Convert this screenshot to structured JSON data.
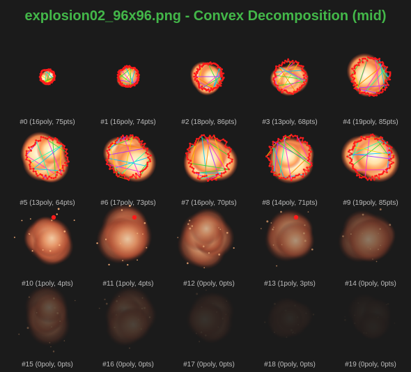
{
  "title": "explosion02_96x96.png - Convex Decomposition (mid)",
  "frames": [
    {
      "label": "#0 (16poly, 75pts)",
      "poly": 16,
      "pts": 75
    },
    {
      "label": "#1 (16poly, 74pts)",
      "poly": 16,
      "pts": 74
    },
    {
      "label": "#2 (18poly, 86pts)",
      "poly": 18,
      "pts": 86
    },
    {
      "label": "#3 (13poly, 68pts)",
      "poly": 13,
      "pts": 68
    },
    {
      "label": "#4 (19poly, 85pts)",
      "poly": 19,
      "pts": 85
    },
    {
      "label": "#5 (13poly, 64pts)",
      "poly": 13,
      "pts": 64
    },
    {
      "label": "#6 (17poly, 73pts)",
      "poly": 17,
      "pts": 73
    },
    {
      "label": "#7 (16poly, 70pts)",
      "poly": 16,
      "pts": 70
    },
    {
      "label": "#8 (14poly, 71pts)",
      "poly": 14,
      "pts": 71
    },
    {
      "label": "#9 (19poly, 85pts)",
      "poly": 19,
      "pts": 85
    },
    {
      "label": "#10 (1poly, 4pts)",
      "poly": 1,
      "pts": 4
    },
    {
      "label": "#11 (1poly, 4pts)",
      "poly": 1,
      "pts": 4
    },
    {
      "label": "#12 (0poly, 0pts)",
      "poly": 0,
      "pts": 0
    },
    {
      "label": "#13 (1poly, 3pts)",
      "poly": 1,
      "pts": 3
    },
    {
      "label": "#14 (0poly, 0pts)",
      "poly": 0,
      "pts": 0
    },
    {
      "label": "#15 (0poly, 0pts)",
      "poly": 0,
      "pts": 0
    },
    {
      "label": "#16 (0poly, 0pts)",
      "poly": 0,
      "pts": 0
    },
    {
      "label": "#17 (0poly, 0pts)",
      "poly": 0,
      "pts": 0
    },
    {
      "label": "#18 (0poly, 0pts)",
      "poly": 0,
      "pts": 0
    },
    {
      "label": "#19 (0poly, 0pts)",
      "poly": 0,
      "pts": 0
    }
  ],
  "colors": {
    "background": "#1b1b1b",
    "title": "#43b749",
    "caption": "#bdbdbd",
    "vertex": "#ff1a1a",
    "edges": [
      "#33dd33",
      "#ffd400",
      "#00c8ff",
      "#aa33ff",
      "#ff2ad4",
      "#22ffaa",
      "#ff8a00"
    ]
  }
}
